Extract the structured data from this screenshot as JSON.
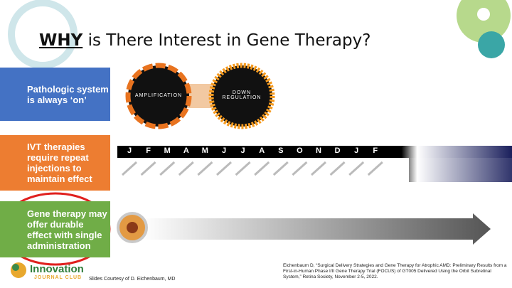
{
  "title": {
    "emphasis": "WHY",
    "rest": " is There Interest in Gene Therapy?"
  },
  "rows": [
    {
      "label": "Pathologic system is always ‘on’"
    },
    {
      "label": "IVT therapies require repeat injections to maintain effect"
    },
    {
      "label": "Gene therapy may offer durable effect with single administration"
    }
  ],
  "circles": [
    "AMPLIFICATION",
    "DOWN REGULATION"
  ],
  "months": [
    "J",
    "F",
    "M",
    "A",
    "M",
    "J",
    "J",
    "A",
    "S",
    "O",
    "N",
    "D",
    "J",
    "F"
  ],
  "logo": {
    "name": "Innovation",
    "sub": "JOURNAL CLUB"
  },
  "credit": "Slides Courtesy of D. Eichenbaum, MD",
  "citation": "Eichenbaum D, “Surgical Delivery Strategies and Gene Therapy for Atrophic AMD: Preliminary Results from a First-in-Human Phase I/II Gene Therapy Trial (FOCUS) of GT005 Delivered Using the Orbit Subretinal System,” Retina Society, November 2-5, 2022."
}
